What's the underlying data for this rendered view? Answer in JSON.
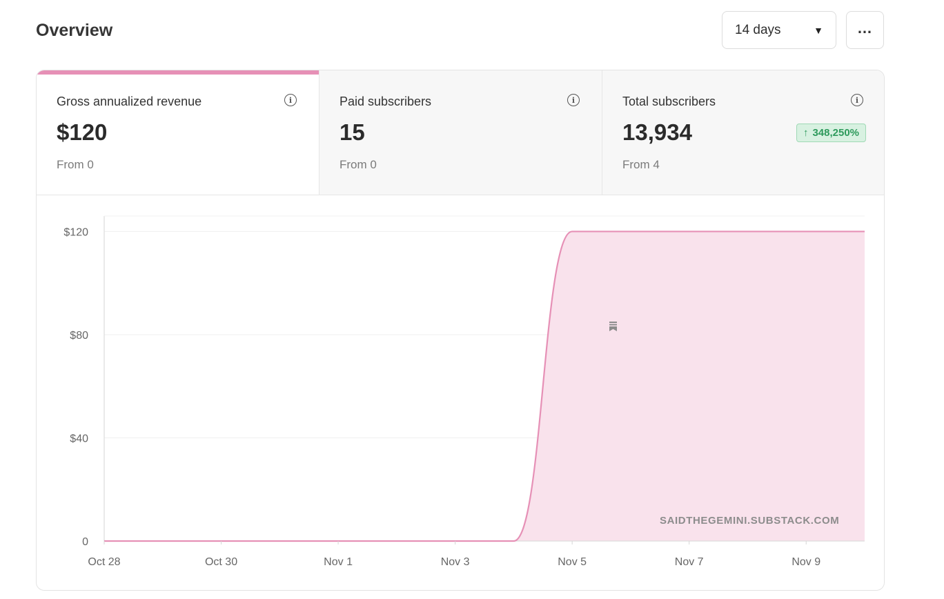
{
  "header": {
    "title": "Overview",
    "range_label": "14 days",
    "more_label": "…"
  },
  "metrics": [
    {
      "label": "Gross annualized revenue",
      "value": "$120",
      "from": "From 0",
      "active": true
    },
    {
      "label": "Paid subscribers",
      "value": "15",
      "from": "From 0"
    },
    {
      "label": "Total subscribers",
      "value": "13,934",
      "from": "From 4",
      "badge": "348,250%"
    }
  ],
  "watermark": "SAIDTHEGEMINI.SUBSTACK.COM",
  "colors": {
    "accent": "#e690b6",
    "fill": "#f9e2ec",
    "badge_bg": "#d8f1e1",
    "badge_text": "#2e9a5c"
  },
  "chart_data": {
    "type": "area",
    "title": "Gross annualized revenue",
    "x": [
      "Oct 28",
      "Oct 29",
      "Oct 30",
      "Oct 31",
      "Nov 1",
      "Nov 2",
      "Nov 3",
      "Nov 4",
      "Nov 5",
      "Nov 6",
      "Nov 7",
      "Nov 8",
      "Nov 9",
      "Nov 10"
    ],
    "series": [
      {
        "name": "Gross annualized revenue",
        "values": [
          0,
          0,
          0,
          0,
          0,
          0,
          0,
          0,
          120,
          120,
          120,
          120,
          120,
          120
        ]
      }
    ],
    "x_tick_labels": [
      "Oct 28",
      "Oct 30",
      "Nov 1",
      "Nov 3",
      "Nov 5",
      "Nov 7",
      "Nov 9"
    ],
    "y_ticks": [
      0,
      40,
      80,
      120
    ],
    "y_tick_labels": [
      "0",
      "$40",
      "$80",
      "$120"
    ],
    "ylim": [
      0,
      126
    ],
    "xlabel": "",
    "ylabel": "",
    "grid": true
  }
}
